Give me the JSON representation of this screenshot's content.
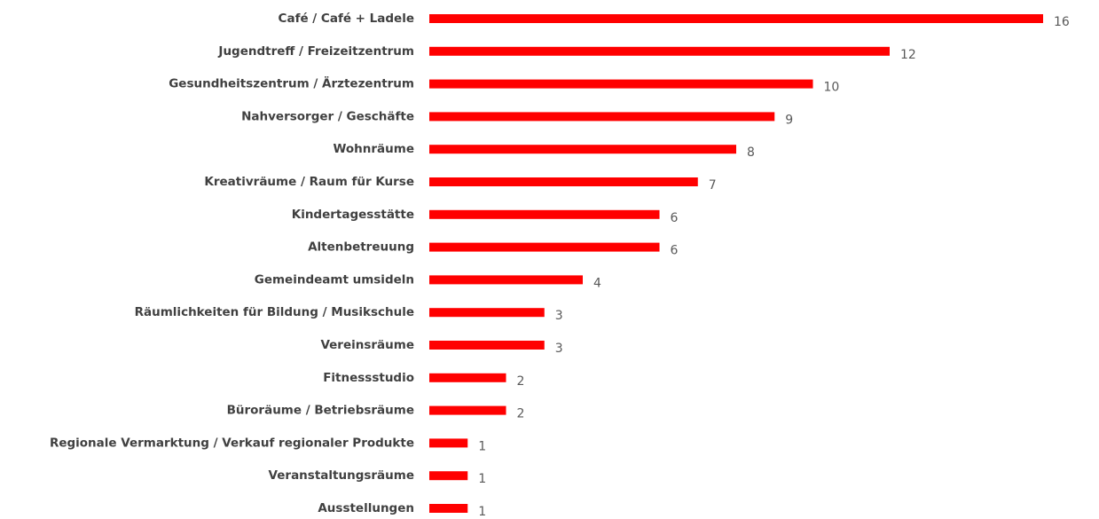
{
  "chart_data": {
    "type": "bar",
    "orientation": "horizontal",
    "color": "#ff0000",
    "categories": [
      "Café / Café + Ladele",
      "Jugendtreff / Freizeitzentrum",
      "Gesundheitszentrum / Ärztezentrum",
      "Nahversorger / Geschäfte",
      "Wohnräume",
      "Kreativräume / Raum für Kurse",
      "Kindertagesstätte",
      "Altenbetreuung",
      "Gemeindeamt umsideln",
      "Räumlichkeiten für Bildung / Musikschule",
      "Vereinsräume",
      "Fitnessstudio",
      "Büroräume / Betriebsräume",
      "Regionale Vermarktung / Verkauf regionaler Produkte",
      "Veranstaltungsräume",
      "Ausstellungen"
    ],
    "values": [
      16,
      12,
      10,
      9,
      8,
      7,
      6,
      6,
      4,
      3,
      3,
      2,
      2,
      1,
      1,
      1
    ]
  }
}
